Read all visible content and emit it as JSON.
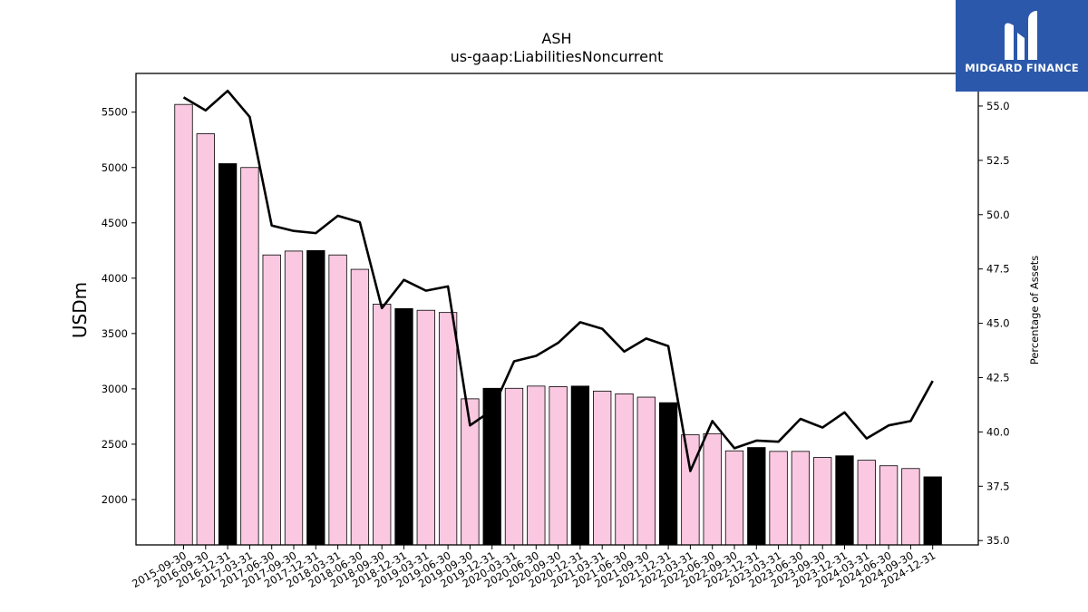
{
  "brand": {
    "name": "MIDGARD FINANCE",
    "logo_icon": "midgard-m-icon",
    "color": "#2b58ab"
  },
  "chart_data": {
    "type": "bar",
    "title": "ASH",
    "subtitle": "us-gaap:LiabilitiesNoncurrent",
    "ylabel": "USDm",
    "ylabel_right": "Percentage of Assets",
    "ylim": [
      1590,
      5850
    ],
    "ylim_right": [
      34.8,
      56.5
    ],
    "yticks": [
      2000,
      2500,
      3000,
      3500,
      4000,
      4500,
      5000,
      5500
    ],
    "yticks_right": [
      "35.0",
      "37.5",
      "40.0",
      "42.5",
      "45.0",
      "47.5",
      "50.0",
      "52.5",
      "55.0"
    ],
    "bar_color": "#fac8e1",
    "highlight_color": "#000000",
    "line_color": "#000000",
    "grid": false,
    "categories": [
      "2015-09-30",
      "2016-09-30",
      "2016-12-31",
      "2017-03-31",
      "2017-06-30",
      "2017-09-30",
      "2017-12-31",
      "2018-03-31",
      "2018-06-30",
      "2018-09-30",
      "2018-12-31",
      "2019-03-31",
      "2019-06-30",
      "2019-09-30",
      "2019-12-31",
      "2020-03-31",
      "2020-06-30",
      "2020-09-30",
      "2020-12-31",
      "2021-03-31",
      "2021-06-30",
      "2021-09-30",
      "2021-12-31",
      "2022-03-31",
      "2022-06-30",
      "2022-09-30",
      "2022-12-31",
      "2023-03-31",
      "2023-06-30",
      "2023-09-30",
      "2023-12-31",
      "2024-03-31",
      "2024-06-30",
      "2024-09-30",
      "2024-12-31"
    ],
    "highlighted": [
      false,
      false,
      true,
      false,
      false,
      false,
      true,
      false,
      false,
      false,
      true,
      false,
      false,
      false,
      true,
      false,
      false,
      false,
      true,
      false,
      false,
      false,
      true,
      false,
      false,
      false,
      true,
      false,
      false,
      false,
      true,
      false,
      false,
      false,
      true
    ],
    "series": [
      {
        "name": "LiabilitiesNoncurrent",
        "type": "bar",
        "values": [
          5570,
          5305,
          5035,
          5000,
          4210,
          4245,
          4250,
          4210,
          4080,
          3765,
          3725,
          3710,
          3690,
          2910,
          3005,
          3005,
          3025,
          3020,
          3025,
          2980,
          2955,
          2925,
          2875,
          2585,
          2595,
          2440,
          2470,
          2435,
          2435,
          2380,
          2395,
          2355,
          2305,
          2280,
          2205
        ]
      },
      {
        "name": "Percentage of Assets",
        "type": "line",
        "values": [
          55.4,
          54.8,
          55.7,
          54.5,
          49.5,
          49.25,
          49.15,
          49.95,
          49.65,
          45.7,
          47.0,
          46.5,
          46.7,
          40.3,
          41.0,
          43.25,
          43.5,
          44.1,
          45.05,
          44.75,
          43.7,
          44.3,
          43.95,
          38.2,
          40.5,
          39.25,
          39.6,
          39.55,
          40.6,
          40.2,
          40.9,
          39.7,
          40.3,
          40.5,
          42.35
        ]
      }
    ]
  }
}
